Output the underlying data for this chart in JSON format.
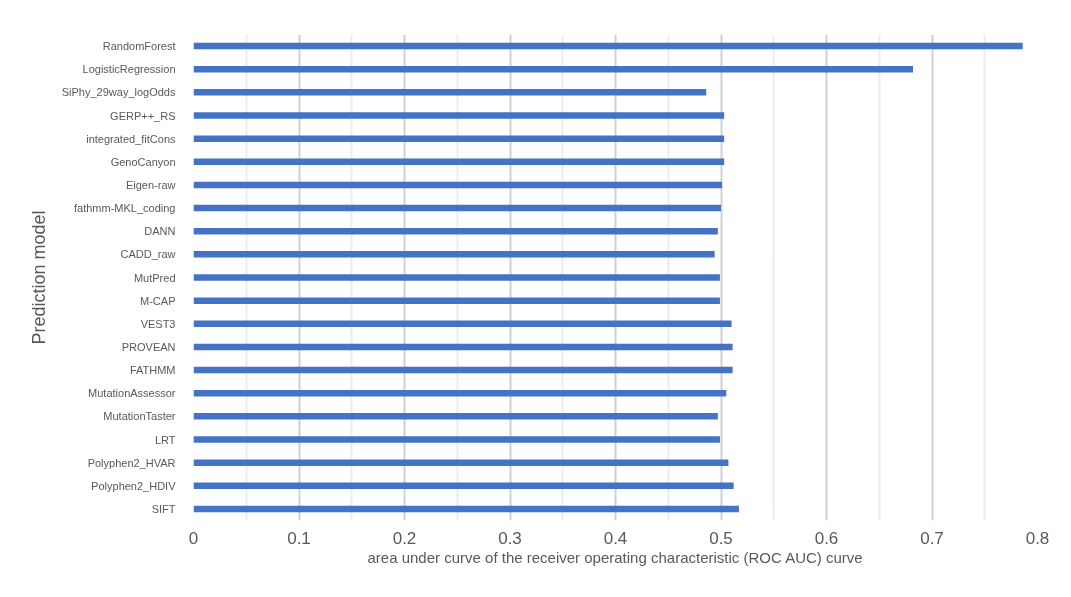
{
  "chart_data": {
    "type": "bar",
    "orientation": "horizontal",
    "xlabel": "area under curve of the receiver operating characteristic (ROC AUC) curve",
    "ylabel": "Prediction model",
    "categories": [
      "RandomForest",
      "LogisticRegression",
      "SiPhy_29way_logOdds",
      "GERP++_RS",
      "integrated_fitCons",
      "GenoCanyon",
      "Eigen-raw",
      "fathmm-MKL_coding",
      "DANN",
      "CADD_raw",
      "MutPred",
      "M-CAP",
      "VEST3",
      "PROVEAN",
      "FATHMM",
      "MutationAssessor",
      "MutationTaster",
      "LRT",
      "Polyphen2_HVAR",
      "Polyphen2_HDIV",
      "SIFT"
    ],
    "values": [
      0.786,
      0.682,
      0.486,
      0.503,
      0.503,
      0.503,
      0.501,
      0.5,
      0.497,
      0.494,
      0.499,
      0.499,
      0.51,
      0.511,
      0.511,
      0.505,
      0.497,
      0.499,
      0.507,
      0.512,
      0.517
    ],
    "color": "#4472c4",
    "xlim": [
      0,
      0.8
    ],
    "xticks": [
      0,
      0.1,
      0.2,
      0.3,
      0.4,
      0.5,
      0.6,
      0.7,
      0.8
    ],
    "grid": "x"
  }
}
